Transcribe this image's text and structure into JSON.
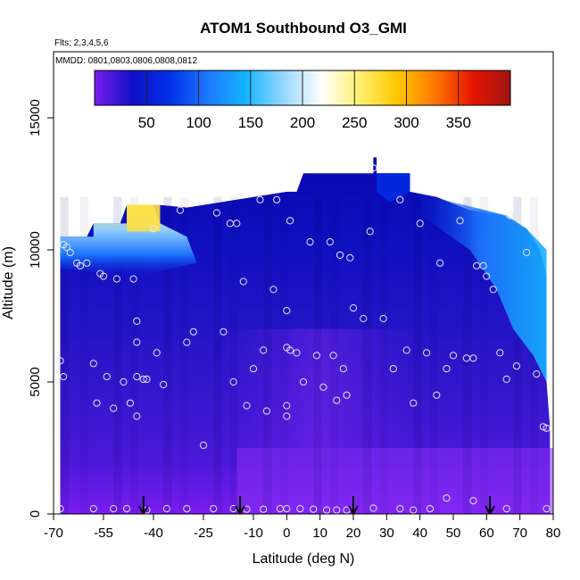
{
  "chart_data": {
    "type": "heatmap",
    "title": "ATOM1 Southbound O3_GMI",
    "flights_label": "Flts: 2,3,4,5,6",
    "dates_label": "MMDD: 0801,0803,0806,0808,0812",
    "xlabel": "Latitude (deg N)",
    "ylabel": "Altitude (m)",
    "xlim": [
      -70,
      80
    ],
    "ylim": [
      0,
      17500
    ],
    "x_ticks": [
      -70,
      -55,
      -40,
      -25,
      -10,
      0,
      10,
      20,
      30,
      40,
      50,
      60,
      70,
      80
    ],
    "x_tick_labels": [
      "-70",
      "-55",
      "-40",
      "-25",
      "-10",
      "0",
      "10",
      "20",
      "30",
      "40",
      "50",
      "60",
      "70",
      "80"
    ],
    "y_ticks": [
      0,
      5000,
      10000,
      15000
    ],
    "y_tick_labels": [
      "0",
      "5000",
      "10000",
      "15000"
    ],
    "colorbar": {
      "range": [
        0,
        400
      ],
      "ticks": [
        50,
        100,
        150,
        200,
        250,
        300,
        350
      ],
      "tick_labels": [
        "50",
        "100",
        "150",
        "200",
        "250",
        "300",
        "350"
      ],
      "colors": [
        "#7A1CF0",
        "#1010C8",
        "#0030E8",
        "#1E78FF",
        "#14B4FF",
        "#96D7FF",
        "#FFFFFF",
        "#FFF070",
        "#FFC800",
        "#FF7800",
        "#E61400",
        "#A01414"
      ]
    },
    "arrows_lat": [
      -43,
      -14,
      20,
      61
    ],
    "sample_points": [
      {
        "lat": -68,
        "alt": 5800
      },
      {
        "lat": -67,
        "alt": 10200
      },
      {
        "lat": -66,
        "alt": 10100
      },
      {
        "lat": -65,
        "alt": 9900
      },
      {
        "lat": -63,
        "alt": 9500
      },
      {
        "lat": -62,
        "alt": 9400
      },
      {
        "lat": -60,
        "alt": 9500
      },
      {
        "lat": -58,
        "alt": 5700
      },
      {
        "lat": -57,
        "alt": 4200
      },
      {
        "lat": -56,
        "alt": 9100
      },
      {
        "lat": -55,
        "alt": 9000
      },
      {
        "lat": -54,
        "alt": 5200
      },
      {
        "lat": -52,
        "alt": 4000
      },
      {
        "lat": -51,
        "alt": 8900
      },
      {
        "lat": -49,
        "alt": 5000
      },
      {
        "lat": -47,
        "alt": 4200
      },
      {
        "lat": -46,
        "alt": 8900
      },
      {
        "lat": -45,
        "alt": 7300
      },
      {
        "lat": -45,
        "alt": 6500
      },
      {
        "lat": -45,
        "alt": 5200
      },
      {
        "lat": -45,
        "alt": 3700
      },
      {
        "lat": -43,
        "alt": 5100
      },
      {
        "lat": -40,
        "alt": 10800
      },
      {
        "lat": -39,
        "alt": 6100
      },
      {
        "lat": -37,
        "alt": 4900
      },
      {
        "lat": -30,
        "alt": 6500
      },
      {
        "lat": -28,
        "alt": 6900
      },
      {
        "lat": -21,
        "alt": 11400
      },
      {
        "lat": -19,
        "alt": 6900
      },
      {
        "lat": -17,
        "alt": 11000
      },
      {
        "lat": -16,
        "alt": 5000
      },
      {
        "lat": -15,
        "alt": 11000
      },
      {
        "lat": -13,
        "alt": 8800
      },
      {
        "lat": -12,
        "alt": 4100
      },
      {
        "lat": -10,
        "alt": 5500
      },
      {
        "lat": -8,
        "alt": 11900
      },
      {
        "lat": -7,
        "alt": 6200
      },
      {
        "lat": -6,
        "alt": 3900
      },
      {
        "lat": -4,
        "alt": 8500
      },
      {
        "lat": -3,
        "alt": 11900
      },
      {
        "lat": 0,
        "alt": 6300
      },
      {
        "lat": 0,
        "alt": 4100
      },
      {
        "lat": 0,
        "alt": 3700
      },
      {
        "lat": 0,
        "alt": 7700
      },
      {
        "lat": 1,
        "alt": 11100
      },
      {
        "lat": 1,
        "alt": 6200
      },
      {
        "lat": 3,
        "alt": 6100
      },
      {
        "lat": 5,
        "alt": 5000
      },
      {
        "lat": 7,
        "alt": 10300
      },
      {
        "lat": 9,
        "alt": 6000
      },
      {
        "lat": 11,
        "alt": 4800
      },
      {
        "lat": 13,
        "alt": 10300
      },
      {
        "lat": 14,
        "alt": 6000
      },
      {
        "lat": 15,
        "alt": 4300
      },
      {
        "lat": 16,
        "alt": 9800
      },
      {
        "lat": 17,
        "alt": 5500
      },
      {
        "lat": 18,
        "alt": 4500
      },
      {
        "lat": 19,
        "alt": 9700
      },
      {
        "lat": 20,
        "alt": 7800
      },
      {
        "lat": 23,
        "alt": 7400
      },
      {
        "lat": 25,
        "alt": 10700
      },
      {
        "lat": 26,
        "alt": 13100
      },
      {
        "lat": 29,
        "alt": 7400
      },
      {
        "lat": 32,
        "alt": 5500
      },
      {
        "lat": 34,
        "alt": 11900
      },
      {
        "lat": 36,
        "alt": 6200
      },
      {
        "lat": 38,
        "alt": 4200
      },
      {
        "lat": 40,
        "alt": 11000
      },
      {
        "lat": 42,
        "alt": 6100
      },
      {
        "lat": 45,
        "alt": 4500
      },
      {
        "lat": 46,
        "alt": 9500
      },
      {
        "lat": 48,
        "alt": 5500
      },
      {
        "lat": 50,
        "alt": 6000
      },
      {
        "lat": 52,
        "alt": 11100
      },
      {
        "lat": 54,
        "alt": 5900
      },
      {
        "lat": 56,
        "alt": 5900
      },
      {
        "lat": 57,
        "alt": 9400
      },
      {
        "lat": 59,
        "alt": 9400
      },
      {
        "lat": 60,
        "alt": 9000
      },
      {
        "lat": 62,
        "alt": 8500
      },
      {
        "lat": 64,
        "alt": 6100
      },
      {
        "lat": 66,
        "alt": 5100
      },
      {
        "lat": 67,
        "alt": 11300
      },
      {
        "lat": 69,
        "alt": 5600
      },
      {
        "lat": 72,
        "alt": 9900
      },
      {
        "lat": 75,
        "alt": 5300
      },
      {
        "lat": 77,
        "alt": 3300
      },
      {
        "lat": 78,
        "alt": 3250
      },
      {
        "lat": -67,
        "alt": 5200
      },
      {
        "lat": -42,
        "alt": 5100
      },
      {
        "lat": -32,
        "alt": 11500
      },
      {
        "lat": -25,
        "alt": 2600
      },
      {
        "lat": -68,
        "alt": 200
      },
      {
        "lat": -58,
        "alt": 200
      },
      {
        "lat": -52,
        "alt": 200
      },
      {
        "lat": -48,
        "alt": 200
      },
      {
        "lat": -42,
        "alt": 150
      },
      {
        "lat": -36,
        "alt": 200
      },
      {
        "lat": -30,
        "alt": 200
      },
      {
        "lat": -22,
        "alt": 200
      },
      {
        "lat": -16,
        "alt": 200
      },
      {
        "lat": -12,
        "alt": 180
      },
      {
        "lat": -7,
        "alt": 180
      },
      {
        "lat": -2,
        "alt": 200
      },
      {
        "lat": 0,
        "alt": 200
      },
      {
        "lat": 4,
        "alt": 200
      },
      {
        "lat": 8,
        "alt": 180
      },
      {
        "lat": 12,
        "alt": 150
      },
      {
        "lat": 15,
        "alt": 150
      },
      {
        "lat": 18,
        "alt": 150
      },
      {
        "lat": 26,
        "alt": 220
      },
      {
        "lat": 34,
        "alt": 200
      },
      {
        "lat": 38,
        "alt": 150
      },
      {
        "lat": 43,
        "alt": 200
      },
      {
        "lat": 48,
        "alt": 600
      },
      {
        "lat": 56,
        "alt": 500
      },
      {
        "lat": 66,
        "alt": 200
      },
      {
        "lat": 78,
        "alt": 200
      }
    ]
  }
}
